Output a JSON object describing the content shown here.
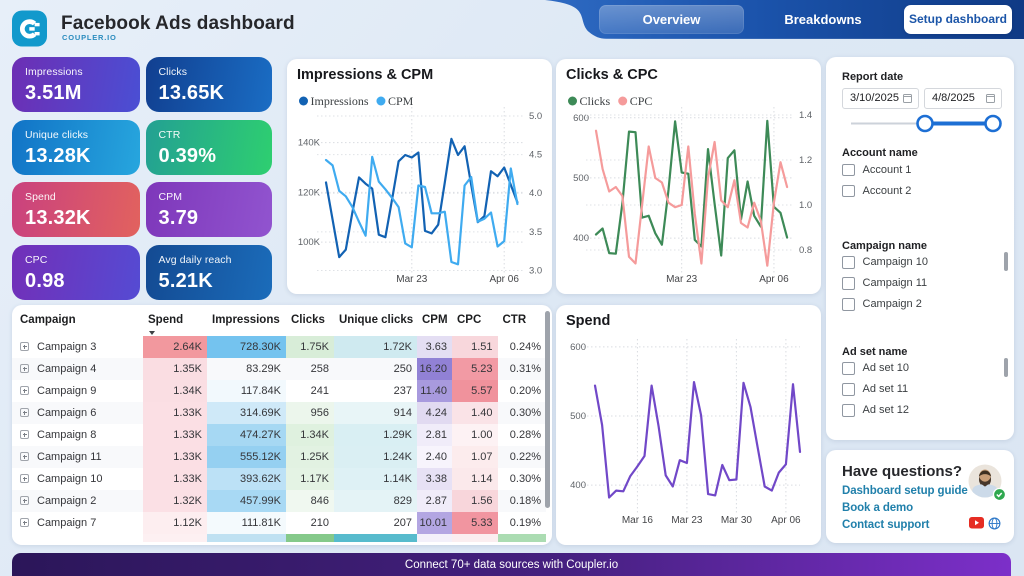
{
  "header": {
    "title": "Facebook Ads dashboard",
    "brand": "COUPLER.IO",
    "logo_color": "#1697cc",
    "tabs": [
      {
        "label": "Overview",
        "active": true
      },
      {
        "label": "Breakdowns",
        "active": false
      }
    ],
    "setup_button": "Setup dashboard"
  },
  "kpis": [
    {
      "label": "Impressions",
      "value": "3.51M",
      "g1": "#6d2eb4",
      "g2": "#4a4fd4"
    },
    {
      "label": "Clicks",
      "value": "13.65K",
      "g1": "#113f90",
      "g2": "#1a6dc4"
    },
    {
      "label": "Unique clicks",
      "value": "13.28K",
      "g1": "#1173c6",
      "g2": "#27a6de"
    },
    {
      "label": "CTR",
      "value": "0.39%",
      "g1": "#23a093",
      "g2": "#2ecf70"
    },
    {
      "label": "Spend",
      "value": "13.32K",
      "g1": "#c9417f",
      "g2": "#e2625e"
    },
    {
      "label": "CPM",
      "value": "3.79",
      "g1": "#7e37ba",
      "g2": "#9154cf"
    },
    {
      "label": "CPC",
      "value": "0.98",
      "g1": "#722fb8",
      "g2": "#554bd3"
    },
    {
      "label": "Avg daily reach",
      "value": "5.21K",
      "g1": "#134a92",
      "g2": "#1b6cba"
    }
  ],
  "chart_data": [
    {
      "id": "impressions_cpm",
      "type": "line",
      "title": "Impressions & CPM",
      "x": [
        "Mar 10",
        "Mar 11",
        "Mar 12",
        "Mar 13",
        "Mar 14",
        "Mar 15",
        "Mar 16",
        "Mar 17",
        "Mar 18",
        "Mar 19",
        "Mar 20",
        "Mar 21",
        "Mar 22",
        "Mar 23",
        "Mar 24",
        "Mar 25",
        "Mar 26",
        "Mar 27",
        "Mar 28",
        "Mar 29",
        "Mar 30",
        "Mar 31",
        "Apr 1",
        "Apr 2",
        "Apr 3",
        "Apr 4",
        "Apr 5",
        "Apr 6",
        "Apr 7",
        "Apr 8"
      ],
      "x_ticks": [
        {
          "label": "Mar 23",
          "day": 14
        },
        {
          "label": "Apr 06",
          "day": 28
        }
      ],
      "series": [
        {
          "name": "Impressions",
          "axis": "left",
          "color": "#1262b3",
          "values": [
            124000,
            109000,
            94000,
            97000,
            112000,
            126000,
            123500,
            121500,
            103000,
            102000,
            117000,
            132500,
            135000,
            134000,
            136000,
            104500,
            103500,
            107000,
            124000,
            141500,
            135000,
            138500,
            123000,
            108000,
            110500,
            128500,
            126500,
            130000,
            123000,
            116000
          ]
        },
        {
          "name": "CPM",
          "axis": "right",
          "color": "#3fabf0",
          "values": [
            4.43,
            4.36,
            4.03,
            3.96,
            3.82,
            3.63,
            3.45,
            4.47,
            4.15,
            4.05,
            3.94,
            3.82,
            3.35,
            3.3,
            4.1,
            4.08,
            3.74,
            3.74,
            3.76,
            3.11,
            3.08,
            4.1,
            4.21,
            3.63,
            3.67,
            3.75,
            3.31,
            3.38,
            4.32,
            3.86
          ]
        }
      ],
      "left_ticks": [
        {
          "v": 100000,
          "label": "100K"
        },
        {
          "v": 120000,
          "label": "120K"
        },
        {
          "v": 140000,
          "label": "140K"
        }
      ],
      "right_ticks": [
        {
          "v": 3.0,
          "label": "3.0"
        },
        {
          "v": 3.5,
          "label": "3.5"
        },
        {
          "v": 4.0,
          "label": "4.0"
        },
        {
          "v": 4.5,
          "label": "4.5"
        },
        {
          "v": 5.0,
          "label": "5.0"
        }
      ],
      "ylim_left": [
        88000,
        153500
      ],
      "ylim_right": [
        2.98,
        5.09
      ],
      "legend": true
    },
    {
      "id": "clicks_cpc",
      "type": "line",
      "title": "Clicks & CPC",
      "x": [
        "Mar 10",
        "Mar 11",
        "Mar 12",
        "Mar 13",
        "Mar 14",
        "Mar 15",
        "Mar 16",
        "Mar 17",
        "Mar 18",
        "Mar 19",
        "Mar 20",
        "Mar 21",
        "Mar 22",
        "Mar 23",
        "Mar 24",
        "Mar 25",
        "Mar 26",
        "Mar 27",
        "Mar 28",
        "Mar 29",
        "Mar 30",
        "Mar 31",
        "Apr 1",
        "Apr 2",
        "Apr 3",
        "Apr 4",
        "Apr 5",
        "Apr 6",
        "Apr 7",
        "Apr 8"
      ],
      "x_ticks": [
        {
          "label": "Mar 23",
          "day": 14
        },
        {
          "label": "Apr 06",
          "day": 28
        }
      ],
      "series": [
        {
          "name": "Clicks",
          "axis": "left",
          "color": "#3d8a57",
          "values": [
            406,
            416,
            375,
            374,
            458,
            577,
            576,
            434,
            437,
            408,
            389,
            480,
            594,
            509,
            507,
            397,
            386,
            548,
            457,
            371,
            533,
            546,
            431,
            494,
            437,
            419,
            595,
            452,
            442,
            401
          ]
        },
        {
          "name": "CPC",
          "axis": "right",
          "color": "#f59b9b",
          "values": [
            1.33,
            1.16,
            1.06,
            1.08,
            1.04,
            0.77,
            0.74,
            1.0,
            1.26,
            1.12,
            1.1,
            1.01,
            0.99,
            1.0,
            1.26,
            0.96,
            0.74,
            1.12,
            1.28,
            1.02,
            0.99,
            1.11,
            0.92,
            0.9,
            1.01,
            0.93,
            0.73,
            1.01,
            1.19,
            1.08
          ]
        }
      ],
      "left_ticks": [
        {
          "v": 400,
          "label": "400"
        },
        {
          "v": 500,
          "label": "500"
        },
        {
          "v": 600,
          "label": "600"
        }
      ],
      "right_ticks": [
        {
          "v": 0.8,
          "label": "0.8"
        },
        {
          "v": 1.0,
          "label": "1.0"
        },
        {
          "v": 1.2,
          "label": "1.2"
        },
        {
          "v": 1.4,
          "label": "1.4"
        }
      ],
      "ylim_left": [
        343.6,
        614.6
      ],
      "ylim_right": [
        0.702,
        1.4267
      ],
      "legend": true
    },
    {
      "id": "spend",
      "type": "line",
      "title": "Spend",
      "x": [
        "Mar 10",
        "Mar 11",
        "Mar 12",
        "Mar 13",
        "Mar 14",
        "Mar 15",
        "Mar 16",
        "Mar 17",
        "Mar 18",
        "Mar 19",
        "Mar 20",
        "Mar 21",
        "Mar 22",
        "Mar 23",
        "Mar 24",
        "Mar 25",
        "Mar 26",
        "Mar 27",
        "Mar 28",
        "Mar 29",
        "Mar 30",
        "Mar 31",
        "Apr 1",
        "Apr 2",
        "Apr 3",
        "Apr 4",
        "Apr 5",
        "Apr 6",
        "Apr 7",
        "Apr 8"
      ],
      "x_ticks": [
        {
          "label": "Mar 16",
          "day": 7
        },
        {
          "label": "Mar 23",
          "day": 14
        },
        {
          "label": "Mar 30",
          "day": 21
        },
        {
          "label": "Apr 06",
          "day": 28
        }
      ],
      "series": [
        {
          "name": "Spend",
          "axis": "left",
          "color": "#7148c8",
          "values": [
            544,
            487,
            382,
            392,
            391,
            413,
            427,
            442,
            544,
            485,
            414,
            398,
            436,
            432,
            549,
            501,
            387,
            385,
            429,
            407,
            408,
            548,
            513,
            455,
            398,
            392,
            418,
            430,
            546,
            448
          ]
        }
      ],
      "left_ticks": [
        {
          "v": 400,
          "label": "400"
        },
        {
          "v": 500,
          "label": "500"
        },
        {
          "v": 600,
          "label": "600"
        }
      ],
      "right_ticks": [],
      "ylim_left": [
        363.2,
        608.5
      ],
      "ylim_right": [
        0,
        1
      ],
      "legend": false
    }
  ],
  "table": {
    "columns": [
      "Campaign",
      "Spend",
      "Impressions",
      "Clicks",
      "Unique clicks",
      "CPM",
      "CPC",
      "CTR"
    ],
    "sort_column": "Spend",
    "rows": [
      {
        "name": "Campaign 3",
        "cells": [
          {
            "v": "2.64K",
            "bg": "#f2989e"
          },
          {
            "v": "728.30K",
            "bg": "#74c3ef"
          },
          {
            "v": "1.75K",
            "bg": "#d8edd8"
          },
          {
            "v": "1.72K",
            "bg": "#cfeaf0"
          },
          {
            "v": "3.63",
            "bg": "#e4def3"
          },
          {
            "v": "1.51",
            "bg": "#f8d7dc"
          },
          {
            "v": "0.24%",
            "bg": ""
          }
        ]
      },
      {
        "name": "Campaign 4",
        "cells": [
          {
            "v": "1.35K",
            "bg": "#fadde2"
          },
          {
            "v": "83.29K",
            "bg": ""
          },
          {
            "v": "258",
            "bg": ""
          },
          {
            "v": "250",
            "bg": ""
          },
          {
            "v": "16.20",
            "bg": "#9181d5"
          },
          {
            "v": "5.23",
            "bg": "#f29aa4"
          },
          {
            "v": "0.31%",
            "bg": ""
          }
        ]
      },
      {
        "name": "Campaign 9",
        "cells": [
          {
            "v": "1.34K",
            "bg": "#fadee3"
          },
          {
            "v": "117.84K",
            "bg": "#f2f9fd"
          },
          {
            "v": "241",
            "bg": ""
          },
          {
            "v": "237",
            "bg": ""
          },
          {
            "v": "11.40",
            "bg": "#a89ade"
          },
          {
            "v": "5.57",
            "bg": "#f0929c"
          },
          {
            "v": "0.20%",
            "bg": ""
          }
        ]
      },
      {
        "name": "Campaign 6",
        "cells": [
          {
            "v": "1.33K",
            "bg": "#fbdfe4"
          },
          {
            "v": "314.69K",
            "bg": "#cfe9f8"
          },
          {
            "v": "956",
            "bg": "#ecf6ec"
          },
          {
            "v": "914",
            "bg": "#e8f5f7"
          },
          {
            "v": "4.24",
            "bg": "#e1daf1"
          },
          {
            "v": "1.40",
            "bg": "#fae3e7"
          },
          {
            "v": "0.30%",
            "bg": ""
          }
        ]
      },
      {
        "name": "Campaign 8",
        "cells": [
          {
            "v": "1.33K",
            "bg": "#fbdfe4"
          },
          {
            "v": "474.27K",
            "bg": "#a6d8f3"
          },
          {
            "v": "1.34K",
            "bg": "#dff1df"
          },
          {
            "v": "1.29K",
            "bg": "#d9eff3"
          },
          {
            "v": "2.81",
            "bg": "#f0ecf9"
          },
          {
            "v": "1.00",
            "bg": "#fdf2f4"
          },
          {
            "v": "0.28%",
            "bg": ""
          }
        ]
      },
      {
        "name": "Campaign 11",
        "cells": [
          {
            "v": "1.33K",
            "bg": "#fbdfe4"
          },
          {
            "v": "555.12K",
            "bg": "#95d0f1"
          },
          {
            "v": "1.25K",
            "bg": "#e2f2e2"
          },
          {
            "v": "1.24K",
            "bg": "#daeff3"
          },
          {
            "v": "2.40",
            "bg": "#f7f4fc"
          },
          {
            "v": "1.07",
            "bg": "#fceced"
          },
          {
            "v": "0.22%",
            "bg": ""
          }
        ]
      },
      {
        "name": "Campaign 10",
        "cells": [
          {
            "v": "1.33K",
            "bg": "#fbdfe4"
          },
          {
            "v": "393.62K",
            "bg": "#bce1f6"
          },
          {
            "v": "1.17K",
            "bg": "#e4f3e4"
          },
          {
            "v": "1.14K",
            "bg": "#def1f5"
          },
          {
            "v": "3.38",
            "bg": "#e7e1f5"
          },
          {
            "v": "1.14",
            "bg": "#fbe9eb"
          },
          {
            "v": "0.30%",
            "bg": ""
          }
        ]
      },
      {
        "name": "Campaign 2",
        "cells": [
          {
            "v": "1.32K",
            "bg": "#fbe0e5"
          },
          {
            "v": "457.99K",
            "bg": "#a8d9f4"
          },
          {
            "v": "846",
            "bg": "#f0f8f0"
          },
          {
            "v": "829",
            "bg": "#e4f3f6"
          },
          {
            "v": "2.87",
            "bg": "#f0ecf9"
          },
          {
            "v": "1.56",
            "bg": "#f8d6db"
          },
          {
            "v": "0.18%",
            "bg": ""
          }
        ]
      },
      {
        "name": "Campaign 7",
        "cells": [
          {
            "v": "1.12K",
            "bg": "#fdeef0"
          },
          {
            "v": "111.81K",
            "bg": "#f4fafd"
          },
          {
            "v": "210",
            "bg": ""
          },
          {
            "v": "207",
            "bg": ""
          },
          {
            "v": "10.01",
            "bg": "#b3a6e2"
          },
          {
            "v": "5.33",
            "bg": "#f195a0"
          },
          {
            "v": "0.19%",
            "bg": ""
          }
        ]
      }
    ],
    "partial_row_colors": [
      "#ffffff",
      "#fdf0f2",
      "#bfe1f2",
      "#85c98a",
      "#57bbcd",
      "#f3f0fa",
      "#fbeef0",
      "#abdcb2"
    ]
  },
  "filters": {
    "report_date_label": "Report date",
    "date_from": "3/10/2025",
    "date_to": "4/8/2025",
    "sections": [
      {
        "label": "Account name",
        "items": [
          "Account 1",
          "Account 2"
        ],
        "scrollbar": false
      },
      {
        "label": "Campaign name",
        "items": [
          "Campaign 10",
          "Campaign 11",
          "Campaign 2"
        ],
        "scrollbar": true
      },
      {
        "label": "Ad set name",
        "items": [
          "Ad set 10",
          "Ad set 11",
          "Ad set 12"
        ],
        "scrollbar": true
      }
    ]
  },
  "help": {
    "title": "Have questions?",
    "links": [
      "Dashboard setup guide",
      "Book a demo",
      "Contact support"
    ]
  },
  "footer": {
    "text": "Connect 70+ data sources with Coupler.io"
  }
}
